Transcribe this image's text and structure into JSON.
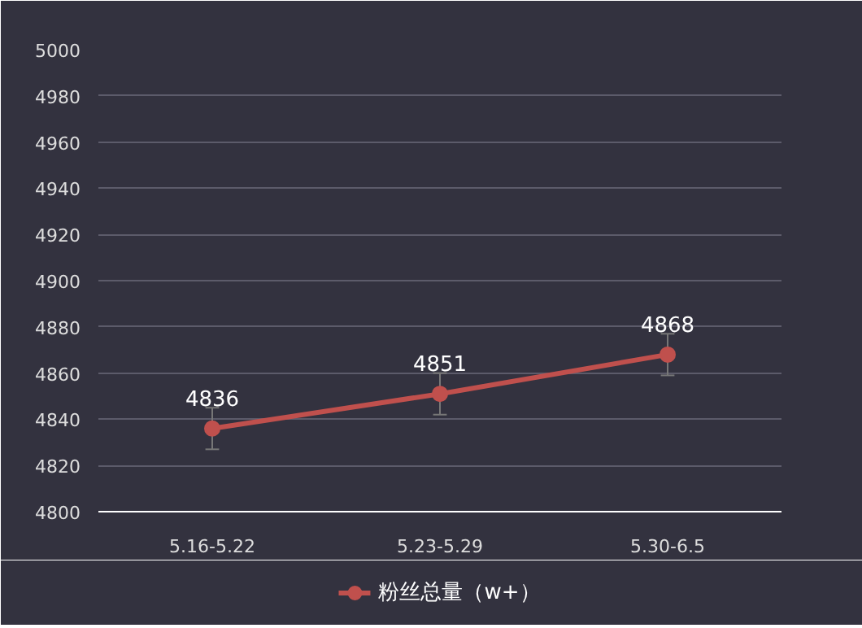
{
  "chart_data": {
    "type": "line",
    "categories": [
      "5.16-5.22",
      "5.23-5.29",
      "5.30-6.5"
    ],
    "series": [
      {
        "name": "粉丝总量（w+）",
        "color": "#c0504d",
        "values": [
          4836,
          4851,
          4868
        ],
        "errors": [
          9,
          9,
          9
        ]
      }
    ],
    "ylim": [
      4800,
      5000
    ],
    "yticks": [
      4800,
      4820,
      4840,
      4860,
      4880,
      4900,
      4920,
      4940,
      4960,
      4980,
      5000
    ],
    "grid": "y",
    "legend": "bottom",
    "marker": "circle",
    "line_style": "solid",
    "data_labels": true
  }
}
